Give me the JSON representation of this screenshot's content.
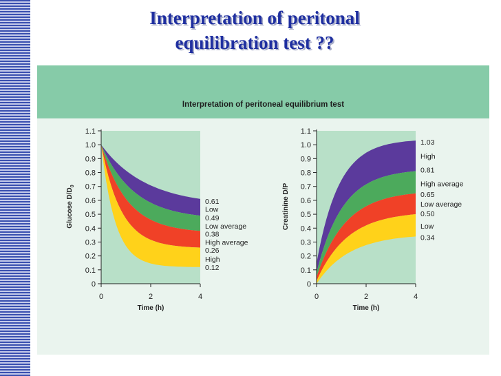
{
  "slide": {
    "title_line1": "Interpretation of peritonal",
    "title_line2": "equilibration test  ??"
  },
  "figure": {
    "title": "Interpretation of peritoneal equilibrium test"
  },
  "colors": {
    "high": "#5b3a9c",
    "high_average": "#4caa5c",
    "low_average": "#f04127",
    "low": "#ffd21a",
    "plot_bg": "#b8e0c8",
    "panel_bg": "#eaf4ee",
    "banner": "#86cba8"
  },
  "chart_data": [
    {
      "type": "area",
      "xlabel": "Time (h)",
      "ylabel": "Glucose D/D0",
      "ylabel_main": "Glucose D/D",
      "ylabel_sub": "0",
      "xlim": [
        0,
        4
      ],
      "ylim": [
        0,
        1.1
      ],
      "x_ticks": [
        0,
        2,
        4
      ],
      "y_ticks": [
        "0",
        "0.1",
        "0.2",
        "0.3",
        "0.4",
        "0.5",
        "0.6",
        "0.7",
        "0.8",
        "0.9",
        "1.0",
        "1.1"
      ],
      "start_value": 1.0,
      "boundaries": [
        0.61,
        0.49,
        0.38,
        0.26,
        0.12
      ],
      "labels": [
        {
          "text": "0.61",
          "y": 0.595
        },
        {
          "text": "Low",
          "y": 0.538
        },
        {
          "text": "0.49",
          "y": 0.475
        },
        {
          "text": "Low average",
          "y": 0.415
        },
        {
          "text": "0.38",
          "y": 0.36
        },
        {
          "text": "High average",
          "y": 0.3
        },
        {
          "text": "0.26",
          "y": 0.242
        },
        {
          "text": "High",
          "y": 0.178
        },
        {
          "text": "0.12",
          "y": 0.12
        }
      ]
    },
    {
      "type": "area",
      "xlabel": "Time (h)",
      "ylabel": "Creatinine D/P",
      "xlim": [
        0,
        4
      ],
      "ylim": [
        0,
        1.1
      ],
      "x_ticks": [
        0,
        2,
        4
      ],
      "y_ticks": [
        "0",
        "0.1",
        "0.2",
        "0.3",
        "0.4",
        "0.5",
        "0.6",
        "0.7",
        "0.8",
        "0.9",
        "1.0",
        "1.1"
      ],
      "start_values": [
        0.15,
        0.08,
        0.05,
        0.02,
        0.0
      ],
      "boundaries": [
        1.03,
        0.81,
        0.65,
        0.5,
        0.34
      ],
      "labels": [
        {
          "text": "1.03",
          "y": 1.02
        },
        {
          "text": "High",
          "y": 0.92
        },
        {
          "text": "0.81",
          "y": 0.82
        },
        {
          "text": "High average",
          "y": 0.72
        },
        {
          "text": "0.65",
          "y": 0.645
        },
        {
          "text": "Low average",
          "y": 0.575
        },
        {
          "text": "0.50",
          "y": 0.505
        },
        {
          "text": "Low",
          "y": 0.415
        },
        {
          "text": "0.34",
          "y": 0.335
        }
      ]
    }
  ]
}
